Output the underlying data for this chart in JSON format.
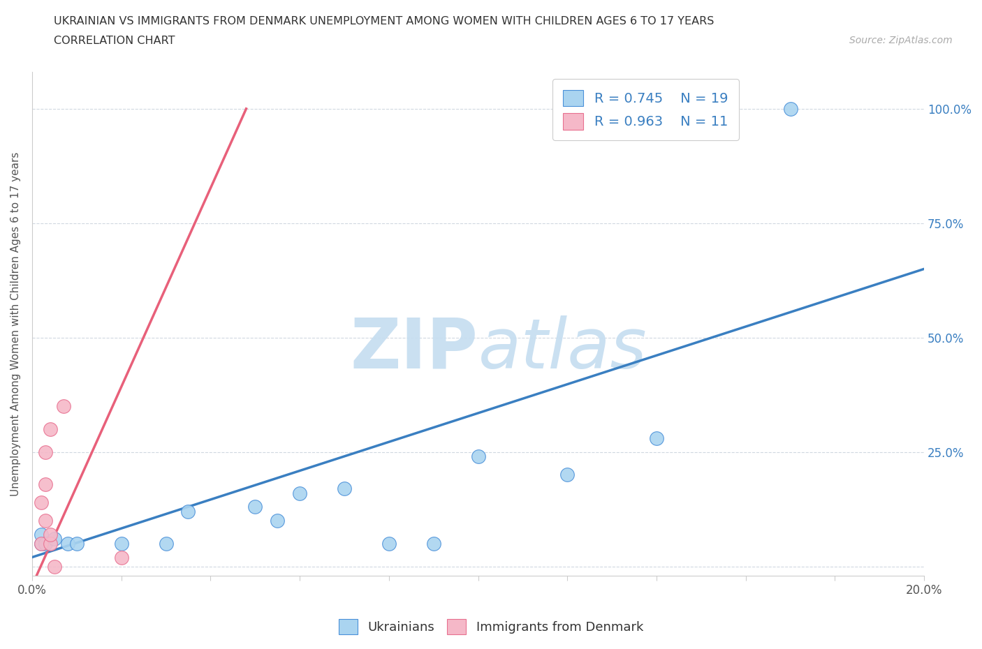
{
  "title_line1": "UKRAINIAN VS IMMIGRANTS FROM DENMARK UNEMPLOYMENT AMONG WOMEN WITH CHILDREN AGES 6 TO 17 YEARS",
  "title_line2": "CORRELATION CHART",
  "source": "Source: ZipAtlas.com",
  "ylabel": "Unemployment Among Women with Children Ages 6 to 17 years",
  "xlim": [
    0.0,
    0.2
  ],
  "ylim": [
    -0.02,
    1.08
  ],
  "xticks": [
    0.0,
    0.02,
    0.04,
    0.06,
    0.08,
    0.1,
    0.12,
    0.14,
    0.16,
    0.18,
    0.2
  ],
  "xtick_labels": [
    "0.0%",
    "",
    "",
    "",
    "",
    "",
    "",
    "",
    "",
    "",
    "20.0%"
  ],
  "yticks": [
    0.0,
    0.25,
    0.5,
    0.75,
    1.0
  ],
  "ytick_labels": [
    "",
    "25.0%",
    "50.0%",
    "75.0%",
    "100.0%"
  ],
  "blue_fill": "#aad4f0",
  "blue_edge": "#4a90d9",
  "pink_fill": "#f5b8c8",
  "pink_edge": "#e87090",
  "blue_line_color": "#3a7fc1",
  "pink_line_color": "#e8607a",
  "legend_text_color": "#3a7fc1",
  "watermark_color": "#c5ddf0",
  "R_blue": 0.745,
  "N_blue": 19,
  "R_pink": 0.963,
  "N_pink": 11,
  "blue_scatter_x": [
    0.002,
    0.002,
    0.003,
    0.005,
    0.008,
    0.01,
    0.02,
    0.03,
    0.035,
    0.05,
    0.055,
    0.06,
    0.07,
    0.08,
    0.09,
    0.1,
    0.12,
    0.14,
    0.17
  ],
  "blue_scatter_y": [
    0.05,
    0.07,
    0.05,
    0.06,
    0.05,
    0.05,
    0.05,
    0.05,
    0.12,
    0.13,
    0.1,
    0.16,
    0.17,
    0.05,
    0.05,
    0.24,
    0.2,
    0.28,
    1.0
  ],
  "pink_scatter_x": [
    0.002,
    0.002,
    0.003,
    0.003,
    0.003,
    0.004,
    0.004,
    0.004,
    0.005,
    0.007,
    0.02
  ],
  "pink_scatter_y": [
    0.05,
    0.14,
    0.1,
    0.18,
    0.25,
    0.3,
    0.05,
    0.07,
    0.0,
    0.35,
    0.02
  ],
  "blue_trend_x": [
    0.0,
    0.2
  ],
  "blue_trend_y": [
    0.02,
    0.65
  ],
  "pink_trend_x": [
    0.001,
    0.048
  ],
  "pink_trend_y": [
    -0.02,
    1.0
  ]
}
